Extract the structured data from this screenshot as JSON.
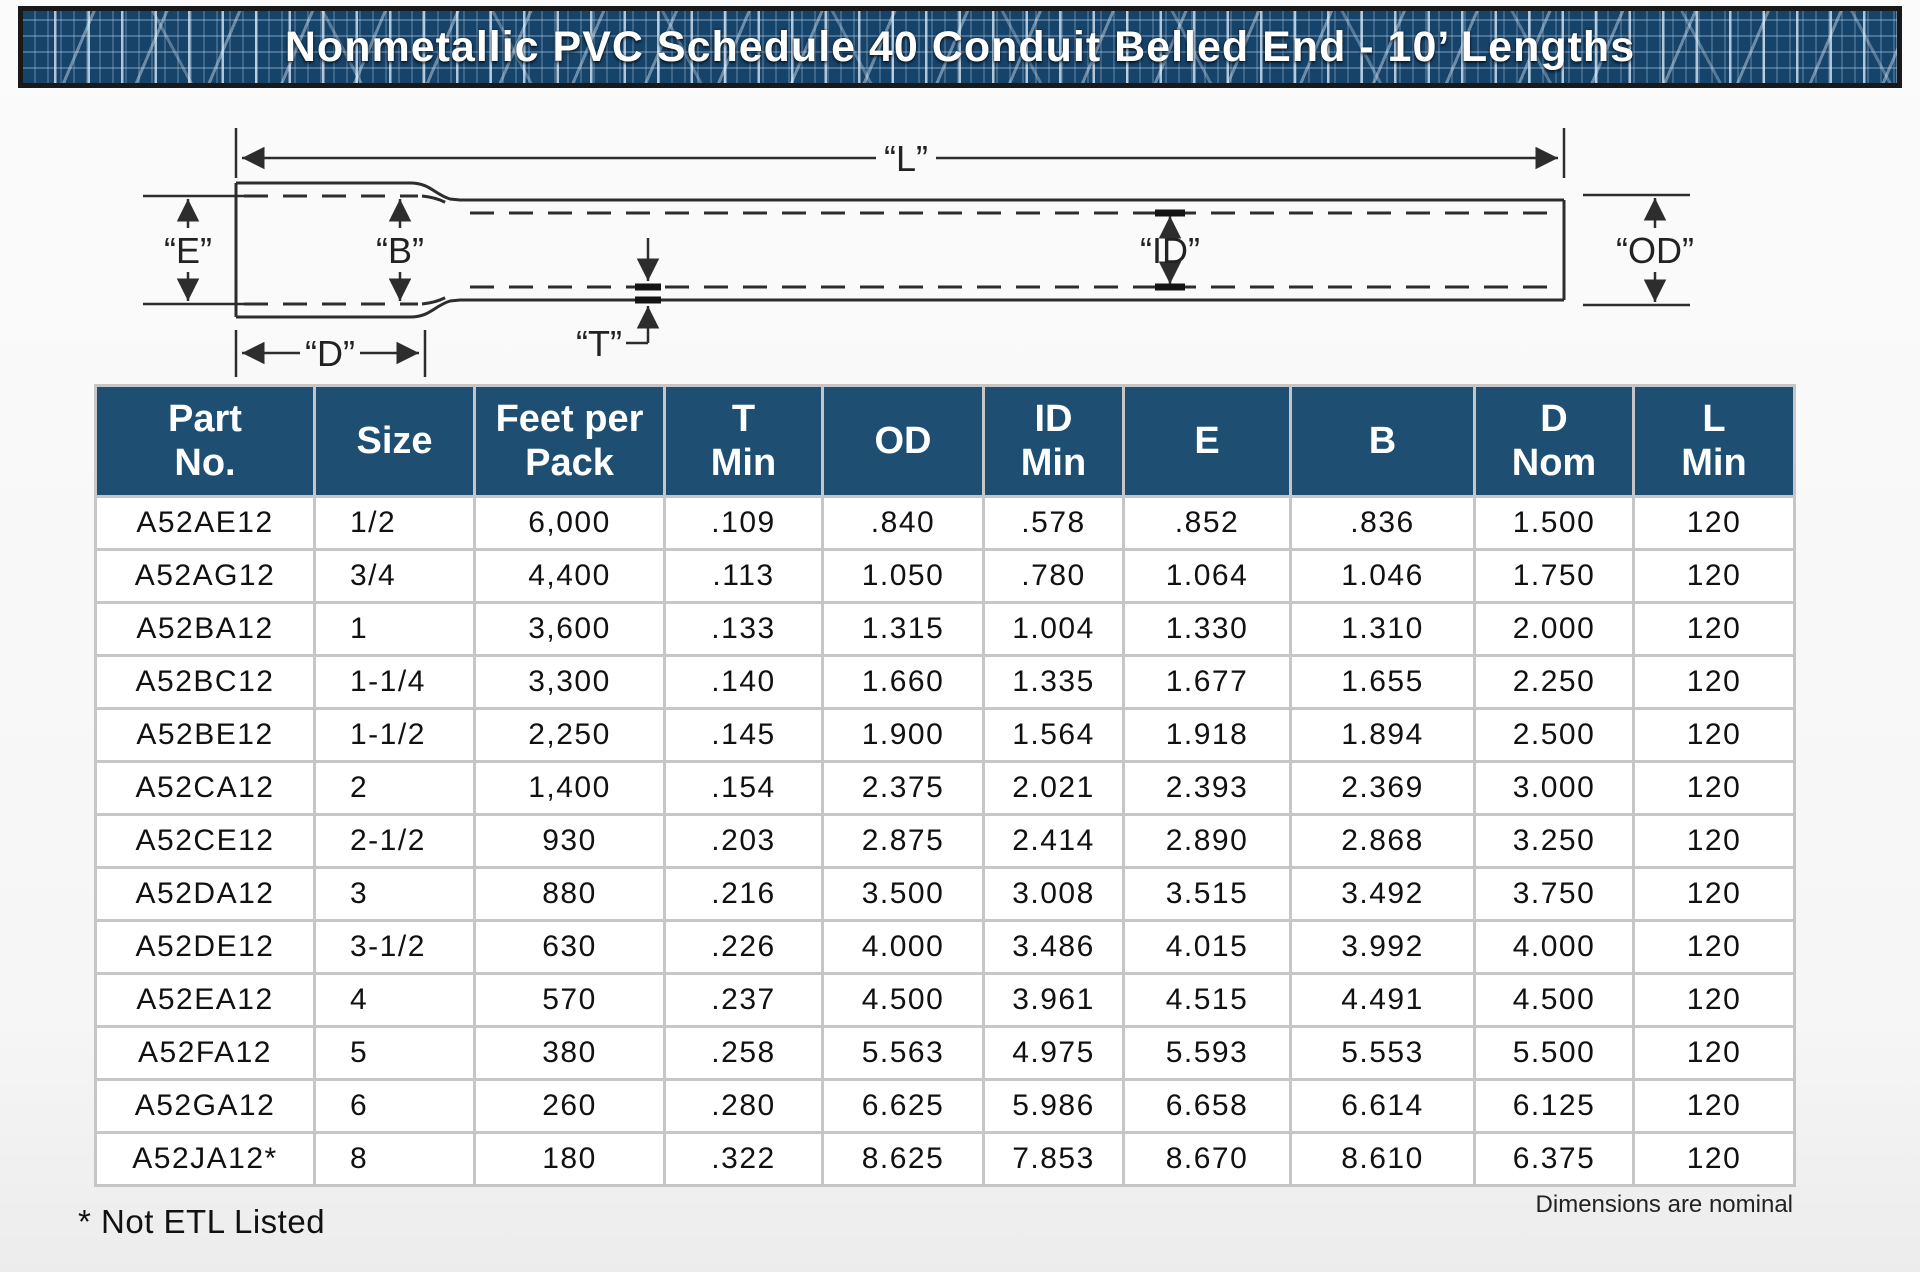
{
  "banner": {
    "title": "Nonmetallic PVC Schedule 40 Conduit Belled End - 10’ Lengths"
  },
  "colors": {
    "banner_bg": "#16436a",
    "header_bg": "#1e4f72"
  },
  "diagram": {
    "labels": {
      "L": "“L”",
      "E": "“E”",
      "B": "“B”",
      "ID": "“ID”",
      "OD": "“OD”",
      "D": "“D”",
      "T": "“T”"
    }
  },
  "table": {
    "columns": [
      {
        "id": "part_no",
        "label": "Part No.",
        "lines": [
          "Part",
          "No."
        ]
      },
      {
        "id": "size",
        "label": "Size",
        "lines": [
          "Size"
        ]
      },
      {
        "id": "feet_per_pack",
        "label": "Feet per Pack",
        "lines": [
          "Feet per",
          "Pack"
        ]
      },
      {
        "id": "t_min",
        "label": "T Min",
        "lines": [
          "T",
          "Min"
        ]
      },
      {
        "id": "od",
        "label": "OD",
        "lines": [
          "OD"
        ]
      },
      {
        "id": "id_min",
        "label": "ID Min",
        "lines": [
          "ID",
          "Min"
        ]
      },
      {
        "id": "e",
        "label": "E",
        "lines": [
          "E"
        ]
      },
      {
        "id": "b",
        "label": "B",
        "lines": [
          "B"
        ]
      },
      {
        "id": "d_nom",
        "label": "D Nom",
        "lines": [
          "D",
          "Nom"
        ]
      },
      {
        "id": "l_min",
        "label": "L Min",
        "lines": [
          "L",
          "Min"
        ]
      }
    ],
    "rows": [
      [
        "A52AE12",
        "1/2",
        "6,000",
        ".109",
        ".840",
        ".578",
        ".852",
        ".836",
        "1.500",
        "120"
      ],
      [
        "A52AG12",
        "3/4",
        "4,400",
        ".113",
        "1.050",
        ".780",
        "1.064",
        "1.046",
        "1.750",
        "120"
      ],
      [
        "A52BA12",
        "1",
        "3,600",
        ".133",
        "1.315",
        "1.004",
        "1.330",
        "1.310",
        "2.000",
        "120"
      ],
      [
        "A52BC12",
        "1-1/4",
        "3,300",
        ".140",
        "1.660",
        "1.335",
        "1.677",
        "1.655",
        "2.250",
        "120"
      ],
      [
        "A52BE12",
        "1-1/2",
        "2,250",
        ".145",
        "1.900",
        "1.564",
        "1.918",
        "1.894",
        "2.500",
        "120"
      ],
      [
        "A52CA12",
        "2",
        "1,400",
        ".154",
        "2.375",
        "2.021",
        "2.393",
        "2.369",
        "3.000",
        "120"
      ],
      [
        "A52CE12",
        "2-1/2",
        "930",
        ".203",
        "2.875",
        "2.414",
        "2.890",
        "2.868",
        "3.250",
        "120"
      ],
      [
        "A52DA12",
        "3",
        "880",
        ".216",
        "3.500",
        "3.008",
        "3.515",
        "3.492",
        "3.750",
        "120"
      ],
      [
        "A52DE12",
        "3-1/2",
        "630",
        ".226",
        "4.000",
        "3.486",
        "4.015",
        "3.992",
        "4.000",
        "120"
      ],
      [
        "A52EA12",
        "4",
        "570",
        ".237",
        "4.500",
        "3.961",
        "4.515",
        "4.491",
        "4.500",
        "120"
      ],
      [
        "A52FA12",
        "5",
        "380",
        ".258",
        "5.563",
        "4.975",
        "5.593",
        "5.553",
        "5.500",
        "120"
      ],
      [
        "A52GA12",
        "6",
        "260",
        ".280",
        "6.625",
        "5.986",
        "6.658",
        "6.614",
        "6.125",
        "120"
      ],
      [
        "A52JA12*",
        "8",
        "180",
        ".322",
        "8.625",
        "7.853",
        "8.670",
        "8.610",
        "6.375",
        "120"
      ]
    ]
  },
  "footnotes": {
    "not_etl": "* Not ETL Listed",
    "dimensions": "Dimensions are nominal"
  }
}
